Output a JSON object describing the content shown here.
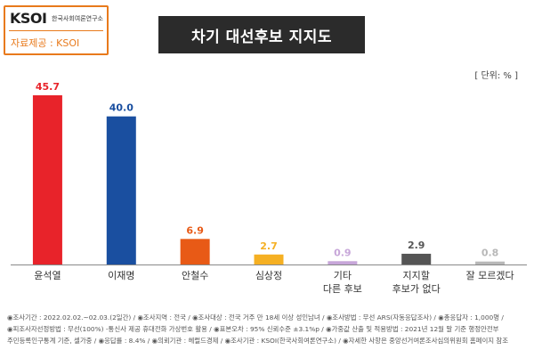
{
  "logo": {
    "mark": "KSOI",
    "org": "한국사회여론연구소",
    "source": "자료제공 : KSOI"
  },
  "title": "차기 대선후보 지지도",
  "unit": "[ 단위: % ]",
  "colors": {
    "bars": [
      "#e8232a",
      "#1a4fa0",
      "#e85a16",
      "#f5b023",
      "#c7a6d9",
      "#555555",
      "#b8b8b8"
    ]
  },
  "chart_data": {
    "type": "bar",
    "categories": [
      [
        "윤석열"
      ],
      [
        "이재명"
      ],
      [
        "안철수"
      ],
      [
        "심상정"
      ],
      [
        "기타",
        "다른 후보"
      ],
      [
        "지지할",
        "후보가 없다"
      ],
      [
        "잘 모르겠다"
      ]
    ],
    "values": [
      45.7,
      40.0,
      6.9,
      2.7,
      0.9,
      2.9,
      0.8
    ],
    "value_labels": [
      "45.7",
      "40.0",
      "6.9",
      "2.7",
      "0.9",
      "2.9",
      "0.8"
    ],
    "ylim": [
      0,
      50
    ]
  },
  "footnote": {
    "line1": "◉조사기간 : 2022.02.02.~02.03.(2일간) / ◉조사지역 : 전국 / ◉조사대상 : 전국 거주 만 18세 이상 성인남녀 / ◉조사방법 : 무선 ARS(자동응답조사) / ◉총응답자 : 1,000명 /",
    "line2": "◉피조사자선정방법 : 무선(100%) -통신사 제공 휴대전화 가상번호 활용 / ◉표본오차 : 95% 신뢰수준 ±3.1%p / ◉가중값 산출 및 적용방법 : 2021년 12월 말 기준 행정안전부",
    "line3": "주민등록인구통계 기준, 셀가중 / ◉응답률 : 8.4% / ◉의뢰기관 : 헤럴드경제 / ◉조사기관 : KSOI(한국사회여론연구소) / ◉자세한 사항은 중앙선거여론조사심의위원회 홈페이지 참조"
  }
}
